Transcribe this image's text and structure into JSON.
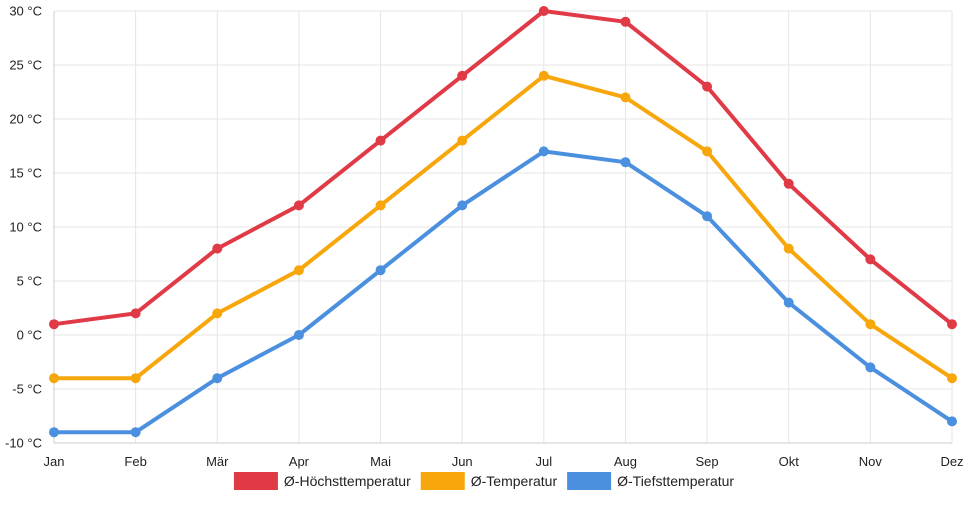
{
  "chart_data": {
    "type": "line",
    "title": "",
    "xlabel": "",
    "ylabel": "",
    "categories": [
      "Jan",
      "Feb",
      "Mär",
      "Apr",
      "Mai",
      "Jun",
      "Jul",
      "Aug",
      "Sep",
      "Okt",
      "Nov",
      "Dez"
    ],
    "ylim": [
      -10,
      30
    ],
    "yticks": [
      -10,
      -5,
      0,
      5,
      10,
      15,
      20,
      25,
      30
    ],
    "ytick_labels": [
      "-10 °C",
      "-5 °C",
      "0 °C",
      "5 °C",
      "10 °C",
      "15 °C",
      "20 °C",
      "25 °C",
      "30 °C"
    ],
    "grid": true,
    "legend_position": "bottom",
    "series": [
      {
        "name": "Ø-Höchsttemperatur",
        "color": "#e03a46",
        "values": [
          1,
          2,
          8,
          12,
          18,
          24,
          30,
          29,
          23,
          14,
          7,
          1
        ]
      },
      {
        "name": "Ø-Temperatur",
        "color": "#f7a60c",
        "values": [
          -4,
          -4,
          2,
          6,
          12,
          18,
          24,
          22,
          17,
          8,
          1,
          -4
        ]
      },
      {
        "name": "Ø-Tiefsttemperatur",
        "color": "#4b8fdf",
        "values": [
          -9,
          -9,
          -4,
          0,
          6,
          12,
          17,
          16,
          11,
          3,
          -3,
          -8
        ]
      }
    ]
  }
}
